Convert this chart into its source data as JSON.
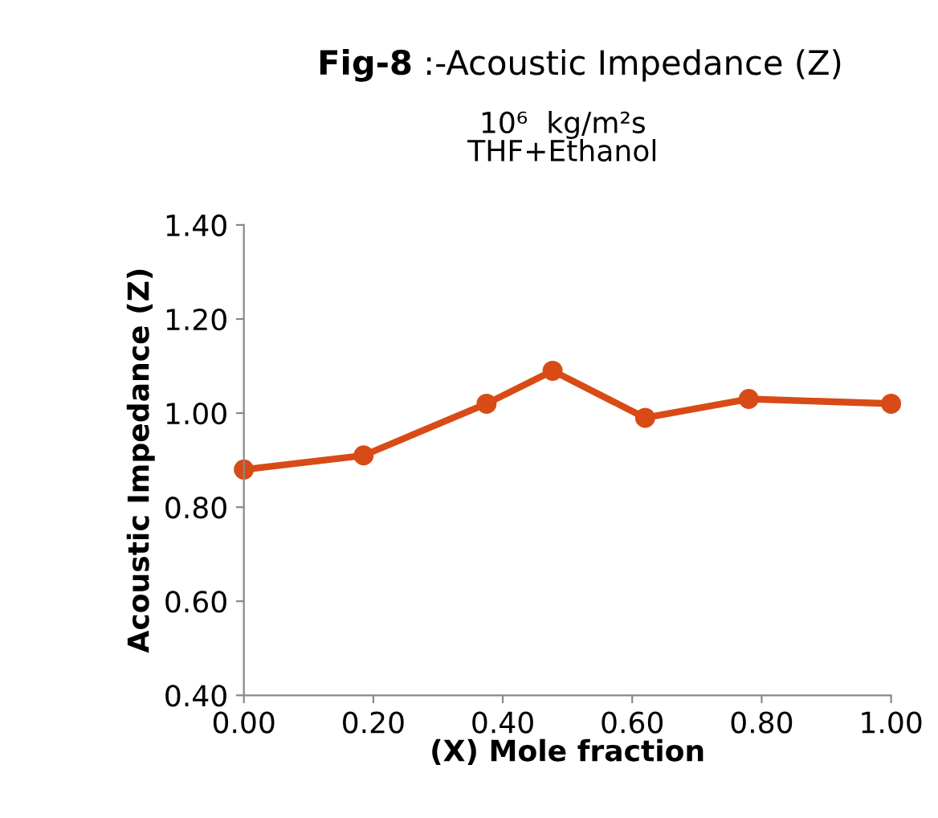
{
  "chart_data": {
    "type": "line",
    "title": "Fig-8 :-Acoustic Impedance (Z)",
    "subtitle": "10⁶  kg/m²s\nTHF+Ethanol",
    "xlabel": "(X) Mole fraction",
    "ylabel": "Acoustic Impedance (Z)",
    "x": [
      0.0,
      0.185,
      0.375,
      0.477,
      0.62,
      0.78,
      1.0
    ],
    "series": [
      {
        "color": "#d84b16",
        "values": [
          0.88,
          0.91,
          1.02,
          1.09,
          0.99,
          1.03,
          1.02
        ]
      }
    ],
    "xlim": [
      0,
      1
    ],
    "xticks": [
      {
        "value": 0,
        "label": "0.00"
      },
      {
        "value": 0.2,
        "label": "0.20"
      },
      {
        "value": 0.4,
        "label": "0.40"
      },
      {
        "value": 0.6,
        "label": "0.60"
      },
      {
        "value": 0.8,
        "label": "0.80"
      },
      {
        "value": 1,
        "label": "1.00"
      }
    ],
    "ylim": [
      0.4,
      1.4
    ],
    "yticks": [
      {
        "value": 0.4,
        "label": "0.40"
      },
      {
        "value": 0.6,
        "label": "0.60"
      },
      {
        "value": 0.8,
        "label": "0.80"
      },
      {
        "value": 1,
        "label": "1.00"
      },
      {
        "value": 1.2,
        "label": "1.20"
      },
      {
        "value": 1.4,
        "label": "1.40"
      }
    ],
    "grid": false,
    "legend": false,
    "marker": "circle",
    "line_style": "solid"
  }
}
